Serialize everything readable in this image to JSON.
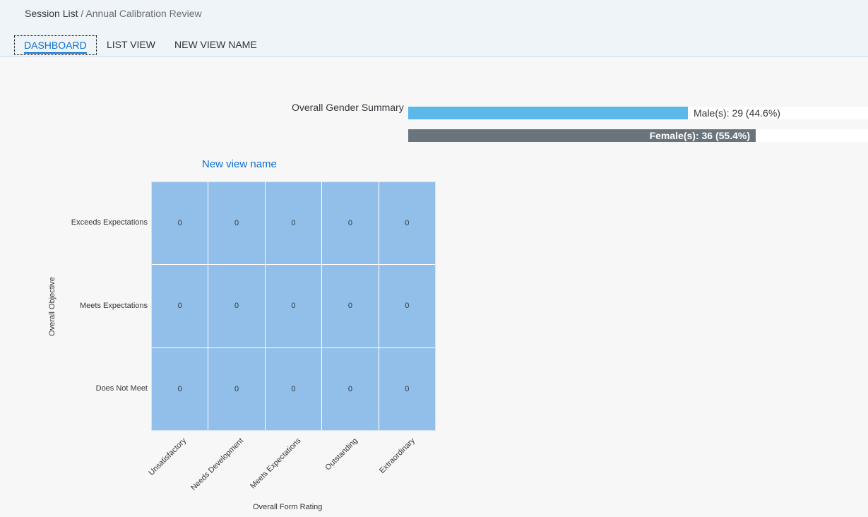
{
  "breadcrumb": {
    "parent": "Session List",
    "separator": " / ",
    "current": "Annual Calibration Review"
  },
  "tabs": [
    {
      "label": "DASHBOARD",
      "active": true
    },
    {
      "label": "LIST VIEW",
      "active": false
    },
    {
      "label": "NEW VIEW NAME",
      "active": false
    }
  ],
  "gender_summary": {
    "title": "Overall Gender Summary",
    "male_label": "Male(s): 29 (44.6%)",
    "female_label": "Female(s): 36 (55.4%)"
  },
  "colors": {
    "accent": "#0a6ed1",
    "male_bar": "#5cb8e8",
    "female_bar": "#6a747d",
    "cell": "#92bfe9"
  },
  "heatmap": {
    "title": "New view name",
    "y_axis_title": "Overall Objective",
    "x_axis_title": "Overall Form Rating"
  },
  "chart_data": [
    {
      "type": "bar",
      "orientation": "horizontal",
      "title": "Overall Gender Summary",
      "categories": [
        "Male(s)",
        "Female(s)"
      ],
      "values": [
        29,
        36
      ],
      "percentages": [
        44.6,
        55.4
      ]
    },
    {
      "type": "heatmap",
      "title": "New view name",
      "xlabel": "Overall Form Rating",
      "ylabel": "Overall Objective",
      "x_categories": [
        "Unsatisfactory",
        "Needs Development",
        "Meets Expectations",
        "Outstanding",
        "Extraordinary"
      ],
      "y_categories": [
        "Exceeds Expectations",
        "Meets Expectations",
        "Does Not Meet"
      ],
      "values": [
        [
          0,
          0,
          0,
          0,
          0
        ],
        [
          0,
          0,
          0,
          0,
          0
        ],
        [
          0,
          0,
          0,
          0,
          0
        ]
      ]
    }
  ]
}
